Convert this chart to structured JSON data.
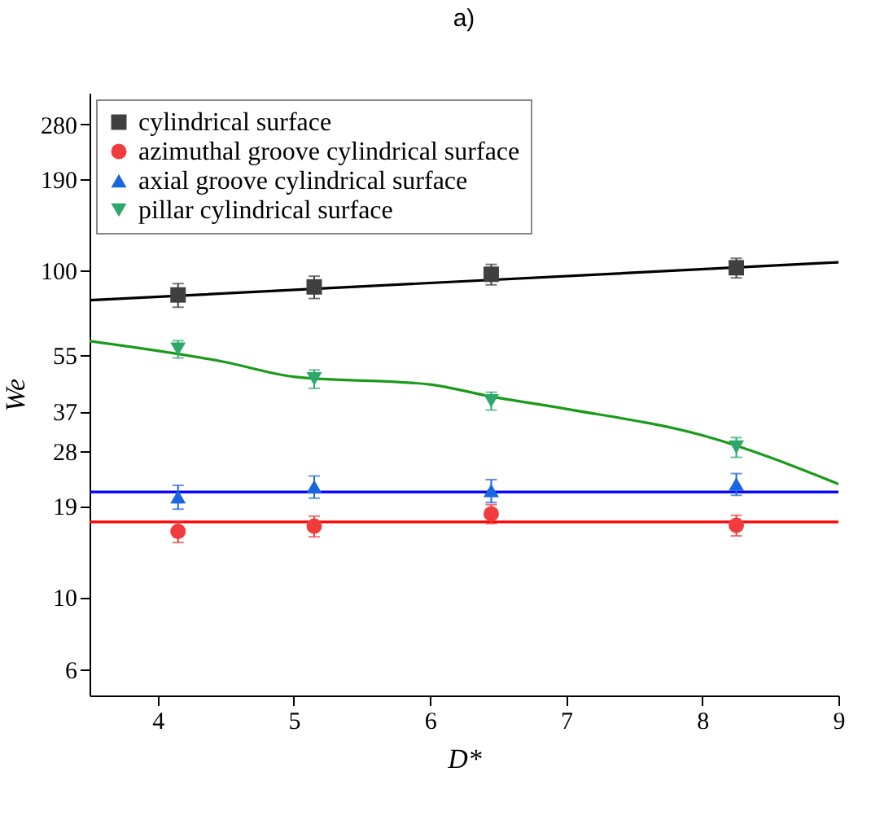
{
  "chart_data": {
    "type": "scatter",
    "title": "a)",
    "xlabel": "D*",
    "ylabel": "We",
    "xlim": [
      3.5,
      9
    ],
    "xticks": [
      4,
      5,
      6,
      7,
      8,
      9
    ],
    "ylim": [
      5,
      350
    ],
    "yticks": [
      6,
      10,
      19,
      28,
      37,
      55,
      100,
      190,
      280
    ],
    "log": "y",
    "grid": false,
    "legend": "top left",
    "x": [
      4.15,
      5.15,
      6.45,
      8.25
    ],
    "series": [
      {
        "name": "cylindrical surface",
        "marker": "square",
        "color": "#404040",
        "values": [
          84.2,
          89.1,
          97.4,
          102
        ],
        "errors": [
          7,
          7,
          7,
          7
        ]
      },
      {
        "name": "azimuthal groove cylindrical surface",
        "marker": "circle",
        "color": "#f03c3c",
        "values": [
          15.9,
          16.5,
          18.0,
          16.6
        ],
        "errors": [
          1.2,
          1.2,
          1.2,
          1.2
        ]
      },
      {
        "name": "axial groove  cylindrical surface",
        "marker": "triangle",
        "color": "#1a66e0",
        "values": [
          20.3,
          21.8,
          21.2,
          22.2
        ],
        "errors": [
          1.7,
          1.7,
          1.7,
          1.7
        ]
      },
      {
        "name": "pillar  cylindrical surface",
        "marker": "triangle-down",
        "color": "#2ca86a",
        "values": [
          57.5,
          46.6,
          39.9,
          28.8
        ],
        "errors": [
          3.5,
          3,
          2.5,
          2
        ]
      },
      {
        "type": "line",
        "color": "#000000",
        "x": [
          3.5,
          9
        ],
        "values": [
          81.1,
          106
        ]
      },
      {
        "type": "line",
        "color": "#ff0000",
        "x": [
          3.5,
          9
        ],
        "values": [
          17.0,
          17.0
        ]
      },
      {
        "type": "line",
        "color": "#0000ff",
        "x": [
          3.5,
          9
        ],
        "values": [
          21.0,
          21.0
        ]
      },
      {
        "type": "line",
        "color": "#1a9a1a",
        "x": [
          3.5,
          4.5,
          5,
          6,
          6.44,
          7,
          8,
          9
        ],
        "values": [
          60.8,
          52.4,
          47.3,
          44.8,
          41.2,
          37.7,
          31.3,
          22.2
        ]
      }
    ]
  }
}
